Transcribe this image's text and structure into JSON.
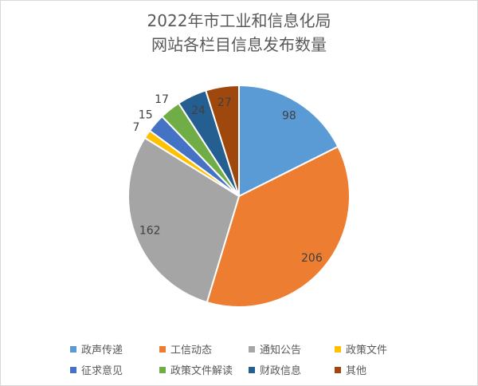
{
  "chart_data": {
    "type": "pie",
    "title_lines": [
      "2022年市工业和信息化局",
      "网站各栏目信息发布数量"
    ],
    "categories": [
      "政声传递",
      "工信动态",
      "通知公告",
      "政策文件",
      "征求意见",
      "政策文件解读",
      "财政信息",
      "其他"
    ],
    "values": [
      98,
      206,
      162,
      7,
      15,
      17,
      24,
      27
    ],
    "colors": [
      "#5B9BD5",
      "#ED7D31",
      "#A5A5A5",
      "#FFC000",
      "#4472C4",
      "#70AD47",
      "#255E91",
      "#9E480E"
    ],
    "start": "top",
    "direction": "clockwise",
    "legend_position": "bottom"
  }
}
